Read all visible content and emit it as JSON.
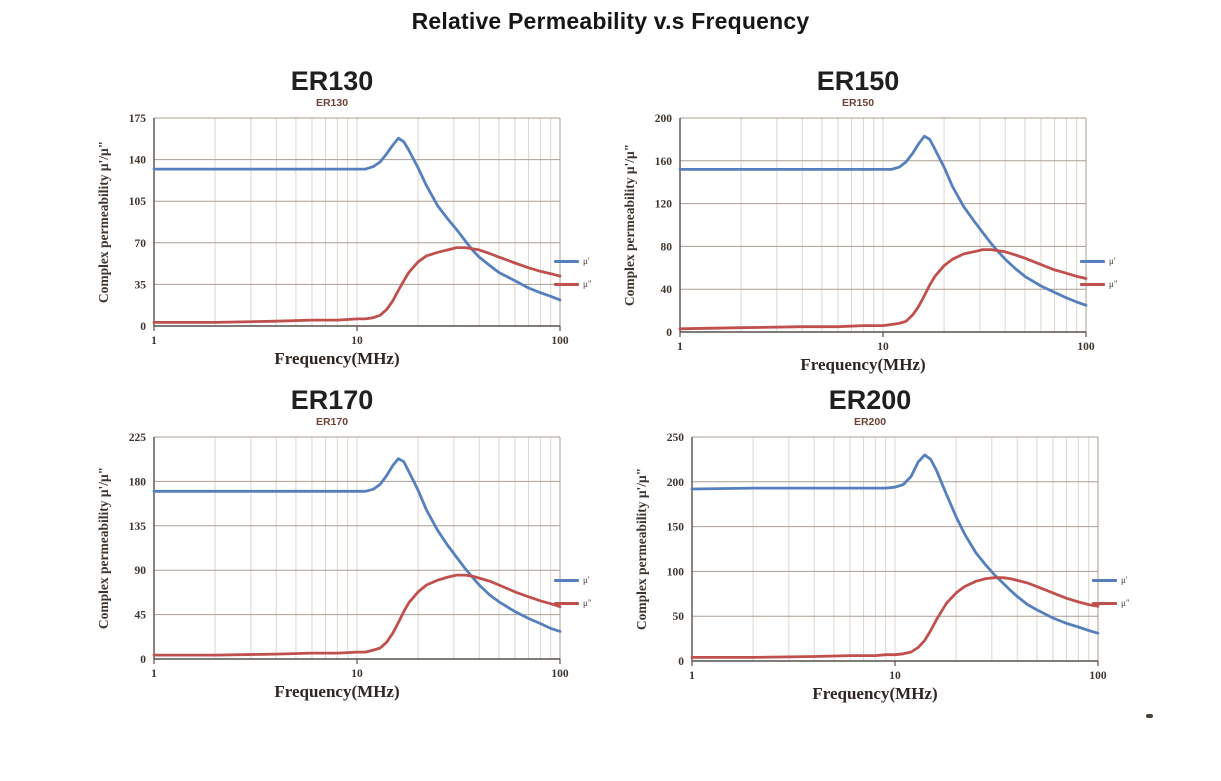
{
  "page_title": "Relative Permeability v.s Frequency",
  "colors": {
    "mu_prime": "#557fbd",
    "mu_double_prime": "#c0504d",
    "grid_h": "#a89d93",
    "grid_v": "#ddd5cd",
    "axis": "#57504a",
    "tick_text": "#3e352e",
    "subtitle_text": "#6d4238"
  },
  "legend_icons": {
    "mu_prime_swatch": "line-swatch",
    "mu_double_prime_swatch": "line-swatch"
  },
  "chart_data": [
    {
      "type": "line",
      "title": "ER130",
      "inner_title": "ER130",
      "xlabel": "Frequency(MHz)",
      "ylabel": "Complex permeability  μ'/μ\"",
      "x_scale": "log",
      "xlim": [
        1,
        100
      ],
      "ylim": [
        0,
        175
      ],
      "y_ticks": [
        0,
        35,
        70,
        105,
        140,
        175
      ],
      "x_ticks": [
        {
          "value": 1,
          "label": "1"
        },
        {
          "value": 10,
          "label": "10"
        },
        {
          "value": 100,
          "label": "100",
          "suffix": "(MHz)"
        }
      ],
      "grid": true,
      "legend_position": "right",
      "series": [
        {
          "name": "μ'",
          "color": "mu_prime",
          "points": [
            [
              1,
              132
            ],
            [
              2,
              132
            ],
            [
              4,
              132
            ],
            [
              6,
              132
            ],
            [
              8,
              132
            ],
            [
              10,
              132
            ],
            [
              11,
              132
            ],
            [
              12,
              134
            ],
            [
              13,
              138
            ],
            [
              14,
              145
            ],
            [
              15,
              152
            ],
            [
              16,
              158
            ],
            [
              17,
              155
            ],
            [
              18,
              148
            ],
            [
              20,
              133
            ],
            [
              22,
              118
            ],
            [
              25,
              101
            ],
            [
              28,
              90
            ],
            [
              31,
              81
            ],
            [
              34,
              72
            ],
            [
              37,
              64
            ],
            [
              40,
              58
            ],
            [
              45,
              51
            ],
            [
              50,
              45
            ],
            [
              60,
              38
            ],
            [
              70,
              32
            ],
            [
              80,
              28
            ],
            [
              90,
              25
            ],
            [
              100,
              22
            ]
          ]
        },
        {
          "name": "μ\"",
          "color": "mu_double_prime",
          "points": [
            [
              1,
              3
            ],
            [
              2,
              3
            ],
            [
              4,
              4
            ],
            [
              6,
              5
            ],
            [
              8,
              5
            ],
            [
              10,
              6
            ],
            [
              11,
              6
            ],
            [
              12,
              7
            ],
            [
              13,
              9
            ],
            [
              14,
              14
            ],
            [
              15,
              21
            ],
            [
              16,
              30
            ],
            [
              17,
              38
            ],
            [
              18,
              45
            ],
            [
              20,
              54
            ],
            [
              22,
              59
            ],
            [
              25,
              62
            ],
            [
              28,
              64
            ],
            [
              31,
              66
            ],
            [
              34,
              66
            ],
            [
              37,
              65
            ],
            [
              40,
              64
            ],
            [
              45,
              61
            ],
            [
              50,
              58
            ],
            [
              60,
              53
            ],
            [
              70,
              49
            ],
            [
              80,
              46
            ],
            [
              90,
              44
            ],
            [
              100,
              42
            ]
          ]
        }
      ]
    },
    {
      "type": "line",
      "title": "ER150",
      "inner_title": "ER150",
      "xlabel": "Frequency(MHz)",
      "ylabel": "Complex permeability  μ'/μ\"",
      "x_scale": "log",
      "xlim": [
        1,
        100
      ],
      "ylim": [
        0,
        200
      ],
      "y_ticks": [
        0,
        40,
        80,
        120,
        160,
        200
      ],
      "x_ticks": [
        {
          "value": 1,
          "label": "1"
        },
        {
          "value": 10,
          "label": "10"
        },
        {
          "value": 100,
          "label": "100",
          "suffix": "(MHz)"
        }
      ],
      "grid": true,
      "legend_position": "right",
      "series": [
        {
          "name": "μ'",
          "color": "mu_prime",
          "points": [
            [
              1,
              152
            ],
            [
              2,
              152
            ],
            [
              4,
              152
            ],
            [
              6,
              152
            ],
            [
              8,
              152
            ],
            [
              10,
              152
            ],
            [
              11,
              152
            ],
            [
              12,
              154
            ],
            [
              13,
              159
            ],
            [
              14,
              167
            ],
            [
              15,
              176
            ],
            [
              16,
              183
            ],
            [
              17,
              180
            ],
            [
              18,
              171
            ],
            [
              20,
              154
            ],
            [
              22,
              136
            ],
            [
              25,
              117
            ],
            [
              28,
              104
            ],
            [
              31,
              93
            ],
            [
              34,
              83
            ],
            [
              37,
              75
            ],
            [
              40,
              68
            ],
            [
              45,
              59
            ],
            [
              50,
              52
            ],
            [
              60,
              43
            ],
            [
              70,
              37
            ],
            [
              80,
              32
            ],
            [
              90,
              28
            ],
            [
              100,
              25
            ]
          ]
        },
        {
          "name": "μ\"",
          "color": "mu_double_prime",
          "points": [
            [
              1,
              3
            ],
            [
              2,
              4
            ],
            [
              4,
              5
            ],
            [
              6,
              5
            ],
            [
              8,
              6
            ],
            [
              10,
              6
            ],
            [
              11,
              7
            ],
            [
              12,
              8
            ],
            [
              13,
              10
            ],
            [
              14,
              16
            ],
            [
              15,
              24
            ],
            [
              16,
              34
            ],
            [
              17,
              44
            ],
            [
              18,
              52
            ],
            [
              20,
              62
            ],
            [
              22,
              68
            ],
            [
              25,
              73
            ],
            [
              28,
              75
            ],
            [
              31,
              77
            ],
            [
              34,
              77
            ],
            [
              37,
              76
            ],
            [
              40,
              75
            ],
            [
              45,
              72
            ],
            [
              50,
              69
            ],
            [
              60,
              63
            ],
            [
              70,
              58
            ],
            [
              80,
              55
            ],
            [
              90,
              52
            ],
            [
              100,
              50
            ]
          ]
        }
      ]
    },
    {
      "type": "line",
      "title": "ER170",
      "inner_title": "ER170",
      "xlabel": "Frequency(MHz)",
      "ylabel": "Complex permeability  μ'/μ\"",
      "x_scale": "log",
      "xlim": [
        1,
        100
      ],
      "ylim": [
        0,
        225
      ],
      "y_ticks": [
        0,
        45,
        90,
        135,
        180,
        225
      ],
      "x_ticks": [
        {
          "value": 1,
          "label": "1"
        },
        {
          "value": 10,
          "label": "10"
        },
        {
          "value": 100,
          "label": "100",
          "suffix": "(MHz)"
        }
      ],
      "grid": true,
      "legend_position": "right",
      "series": [
        {
          "name": "μ'",
          "color": "mu_prime",
          "points": [
            [
              1,
              170
            ],
            [
              2,
              170
            ],
            [
              4,
              170
            ],
            [
              6,
              170
            ],
            [
              8,
              170
            ],
            [
              10,
              170
            ],
            [
              11,
              170
            ],
            [
              12,
              172
            ],
            [
              13,
              177
            ],
            [
              14,
              186
            ],
            [
              15,
              196
            ],
            [
              16,
              203
            ],
            [
              17,
              200
            ],
            [
              18,
              190
            ],
            [
              20,
              171
            ],
            [
              22,
              151
            ],
            [
              25,
              130
            ],
            [
              28,
              115
            ],
            [
              31,
              103
            ],
            [
              34,
              92
            ],
            [
              37,
              83
            ],
            [
              40,
              75
            ],
            [
              45,
              65
            ],
            [
              50,
              58
            ],
            [
              60,
              48
            ],
            [
              70,
              41
            ],
            [
              80,
              36
            ],
            [
              90,
              31
            ],
            [
              100,
              28
            ]
          ]
        },
        {
          "name": "μ\"",
          "color": "mu_double_prime",
          "points": [
            [
              1,
              4
            ],
            [
              2,
              4
            ],
            [
              4,
              5
            ],
            [
              6,
              6
            ],
            [
              8,
              6
            ],
            [
              10,
              7
            ],
            [
              11,
              7
            ],
            [
              12,
              9
            ],
            [
              13,
              11
            ],
            [
              14,
              17
            ],
            [
              15,
              26
            ],
            [
              16,
              37
            ],
            [
              17,
              48
            ],
            [
              18,
              57
            ],
            [
              20,
              68
            ],
            [
              22,
              75
            ],
            [
              25,
              80
            ],
            [
              28,
              83
            ],
            [
              31,
              85
            ],
            [
              34,
              85
            ],
            [
              37,
              84
            ],
            [
              40,
              82
            ],
            [
              45,
              79
            ],
            [
              50,
              75
            ],
            [
              60,
              68
            ],
            [
              70,
              63
            ],
            [
              80,
              59
            ],
            [
              90,
              56
            ],
            [
              100,
              53
            ]
          ]
        }
      ]
    },
    {
      "type": "line",
      "title": "ER200",
      "inner_title": "ER200",
      "xlabel": "Frequency(MHz)",
      "ylabel": "Complex permeability  μ'/μ\"",
      "x_scale": "log",
      "xlim": [
        1,
        100
      ],
      "ylim": [
        0,
        250
      ],
      "y_ticks": [
        0,
        50,
        100,
        150,
        200,
        250
      ],
      "x_ticks": [
        {
          "value": 1,
          "label": "1"
        },
        {
          "value": 10,
          "label": "10"
        },
        {
          "value": 100,
          "label": "100",
          "suffix": "(MHz)"
        }
      ],
      "grid": true,
      "legend_position": "right",
      "series": [
        {
          "name": "μ'",
          "color": "mu_prime",
          "points": [
            [
              1,
              192
            ],
            [
              2,
              193
            ],
            [
              4,
              193
            ],
            [
              6,
              193
            ],
            [
              8,
              193
            ],
            [
              9,
              193
            ],
            [
              10,
              194
            ],
            [
              11,
              197
            ],
            [
              12,
              206
            ],
            [
              13,
              222
            ],
            [
              14,
              230
            ],
            [
              15,
              225
            ],
            [
              16,
              213
            ],
            [
              18,
              185
            ],
            [
              20,
              161
            ],
            [
              22,
              142
            ],
            [
              25,
              121
            ],
            [
              28,
              107
            ],
            [
              31,
              96
            ],
            [
              34,
              87
            ],
            [
              37,
              79
            ],
            [
              40,
              72
            ],
            [
              45,
              63
            ],
            [
              50,
              57
            ],
            [
              60,
              48
            ],
            [
              70,
              42
            ],
            [
              80,
              38
            ],
            [
              90,
              34
            ],
            [
              100,
              31
            ]
          ]
        },
        {
          "name": "μ\"",
          "color": "mu_double_prime",
          "points": [
            [
              1,
              4
            ],
            [
              2,
              4
            ],
            [
              4,
              5
            ],
            [
              6,
              6
            ],
            [
              8,
              6
            ],
            [
              9,
              7
            ],
            [
              10,
              7
            ],
            [
              11,
              8
            ],
            [
              12,
              10
            ],
            [
              13,
              15
            ],
            [
              14,
              23
            ],
            [
              15,
              34
            ],
            [
              16,
              46
            ],
            [
              17,
              56
            ],
            [
              18,
              65
            ],
            [
              20,
              76
            ],
            [
              22,
              83
            ],
            [
              25,
              89
            ],
            [
              28,
              92
            ],
            [
              31,
              93
            ],
            [
              34,
              93
            ],
            [
              37,
              92
            ],
            [
              40,
              90
            ],
            [
              45,
              87
            ],
            [
              50,
              83
            ],
            [
              60,
              76
            ],
            [
              70,
              70
            ],
            [
              80,
              66
            ],
            [
              90,
              63
            ],
            [
              100,
              61
            ]
          ]
        }
      ]
    }
  ]
}
